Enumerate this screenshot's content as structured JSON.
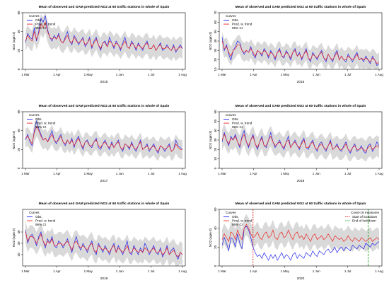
{
  "figure": {
    "panel_title": "Mean of observed and GAM predicted NO2 at 60 traffic stations in whole of Spain",
    "ylabel": "NO2 (ugm-3)",
    "month_ticks": [
      "1 Mar",
      "1 Apr",
      "1 May",
      "1 Jun",
      "1 Jul",
      "1 Aug"
    ],
    "legend": {
      "title": "Curves",
      "obs": "Obs.",
      "pred": "Pred. w. trend",
      "ci": "95% CI"
    },
    "covid_legend": {
      "title": "Covid-19 measures",
      "start": "Start of lockdown",
      "end": "End of lockdown"
    },
    "colors": {
      "obs": "#2222ee",
      "pred": "#ee2222",
      "ci": "#d9d9d9",
      "start_line": "#dd0000",
      "end_line": "#119911"
    }
  },
  "chart_data": [
    {
      "type": "line",
      "year": "2015",
      "ylim": [
        0,
        60
      ],
      "yticks": [
        0,
        20,
        40,
        60
      ],
      "obs": [
        28,
        38,
        34,
        32,
        44,
        30,
        40,
        54,
        50,
        57,
        42,
        34,
        30,
        36,
        32,
        38,
        30,
        28,
        34,
        40,
        30,
        26,
        36,
        32,
        26,
        30,
        34,
        24,
        28,
        34,
        22,
        30,
        34,
        26,
        20,
        28,
        30,
        24,
        34,
        28,
        22,
        30,
        26,
        20,
        28,
        34,
        24,
        22,
        30,
        26,
        20,
        28,
        24,
        20,
        26,
        30,
        22,
        22,
        26,
        20,
        24,
        28,
        20,
        22,
        26,
        22,
        20,
        26,
        18,
        22,
        26,
        22
      ],
      "pred": [
        30,
        36,
        32,
        30,
        40,
        32,
        38,
        48,
        44,
        50,
        40,
        34,
        32,
        34,
        32,
        36,
        30,
        28,
        32,
        36,
        30,
        28,
        34,
        30,
        28,
        30,
        32,
        26,
        28,
        32,
        24,
        28,
        32,
        26,
        22,
        28,
        28,
        24,
        30,
        28,
        24,
        28,
        26,
        22,
        26,
        30,
        24,
        22,
        28,
        26,
        22,
        26,
        24,
        22,
        26,
        28,
        22,
        22,
        26,
        20,
        24,
        26,
        22,
        22,
        24,
        22,
        20,
        24,
        20,
        22,
        24,
        22
      ],
      "ci_half": 11
    },
    {
      "type": "line",
      "year": "2016",
      "ylim": [
        10,
        70
      ],
      "yticks": [
        10,
        20,
        30,
        40,
        50,
        60,
        70
      ],
      "obs": [
        44,
        30,
        36,
        26,
        20,
        30,
        34,
        40,
        38,
        30,
        26,
        30,
        28,
        34,
        26,
        22,
        30,
        28,
        24,
        32,
        28,
        22,
        30,
        26,
        20,
        28,
        32,
        24,
        22,
        30,
        26,
        20,
        28,
        32,
        24,
        28,
        20,
        26,
        32,
        22,
        18,
        28,
        24,
        20,
        26,
        30,
        22,
        18,
        26,
        22,
        18,
        26,
        30,
        20,
        24,
        20,
        18,
        26,
        22,
        18,
        24,
        28,
        20,
        22,
        18,
        24,
        20,
        16,
        24,
        20,
        14,
        16
      ],
      "pred": [
        40,
        32,
        34,
        28,
        24,
        30,
        32,
        36,
        36,
        30,
        28,
        30,
        28,
        32,
        28,
        24,
        30,
        28,
        26,
        30,
        28,
        24,
        28,
        26,
        22,
        28,
        30,
        24,
        24,
        28,
        26,
        22,
        28,
        30,
        24,
        26,
        22,
        26,
        30,
        22,
        20,
        26,
        24,
        22,
        26,
        28,
        22,
        20,
        26,
        22,
        20,
        24,
        28,
        20,
        24,
        20,
        20,
        24,
        22,
        20,
        22,
        26,
        20,
        22,
        20,
        22,
        20,
        18,
        22,
        20,
        16,
        18
      ],
      "ci_half": 10
    },
    {
      "type": "line",
      "year": "2017",
      "ylim": [
        0,
        60
      ],
      "yticks": [
        0,
        20,
        40,
        60
      ],
      "obs": [
        30,
        36,
        28,
        24,
        40,
        50,
        42,
        36,
        30,
        32,
        28,
        34,
        40,
        30,
        26,
        32,
        36,
        28,
        24,
        30,
        26,
        32,
        22,
        30,
        34,
        26,
        20,
        28,
        30,
        24,
        22,
        28,
        32,
        22,
        20,
        26,
        30,
        24,
        20,
        28,
        22,
        26,
        30,
        22,
        18,
        26,
        24,
        20,
        28,
        22,
        18,
        24,
        30,
        20,
        22,
        26,
        18,
        22,
        26,
        20,
        16,
        24,
        22,
        18,
        22,
        26,
        18,
        20,
        30,
        24,
        22,
        20
      ],
      "pred": [
        32,
        34,
        30,
        26,
        38,
        44,
        40,
        34,
        30,
        32,
        28,
        32,
        36,
        30,
        28,
        30,
        34,
        28,
        26,
        30,
        26,
        30,
        24,
        28,
        32,
        26,
        22,
        28,
        28,
        24,
        24,
        28,
        30,
        24,
        22,
        26,
        28,
        24,
        22,
        26,
        22,
        26,
        28,
        22,
        20,
        26,
        24,
        22,
        26,
        22,
        20,
        24,
        28,
        20,
        22,
        24,
        20,
        22,
        24,
        20,
        18,
        24,
        22,
        20,
        22,
        24,
        18,
        20,
        26,
        22,
        20,
        20
      ],
      "ci_half": 10
    },
    {
      "type": "line",
      "year": "2018",
      "ylim": [
        0,
        60
      ],
      "yticks": [
        0,
        10,
        20,
        30,
        40,
        50,
        60
      ],
      "obs": [
        28,
        38,
        30,
        24,
        34,
        30,
        36,
        28,
        22,
        34,
        40,
        28,
        22,
        30,
        36,
        26,
        20,
        28,
        34,
        24,
        22,
        30,
        38,
        28,
        22,
        26,
        30,
        24,
        20,
        28,
        34,
        22,
        26,
        30,
        24,
        20,
        28,
        32,
        22,
        20,
        26,
        30,
        22,
        18,
        26,
        28,
        22,
        18,
        24,
        30,
        20,
        22,
        26,
        20,
        18,
        24,
        28,
        20,
        16,
        22,
        26,
        18,
        20,
        24,
        18,
        16,
        24,
        26,
        18,
        22,
        28,
        24
      ],
      "pred": [
        30,
        36,
        30,
        26,
        32,
        30,
        34,
        28,
        24,
        32,
        36,
        28,
        24,
        30,
        34,
        26,
        22,
        28,
        32,
        24,
        24,
        30,
        34,
        28,
        24,
        26,
        28,
        24,
        22,
        28,
        30,
        22,
        26,
        28,
        24,
        22,
        26,
        30,
        22,
        22,
        26,
        28,
        22,
        20,
        24,
        26,
        22,
        20,
        24,
        28,
        20,
        22,
        24,
        20,
        20,
        22,
        26,
        20,
        18,
        22,
        24,
        20,
        20,
        22,
        20,
        18,
        22,
        24,
        20,
        22,
        24,
        22
      ],
      "ci_half": 11
    },
    {
      "type": "line",
      "year": "2019",
      "ylim": [
        10,
        60
      ],
      "yticks": [
        20,
        30,
        40
      ],
      "obs": [
        42,
        30,
        36,
        38,
        34,
        28,
        36,
        40,
        32,
        26,
        34,
        30,
        36,
        28,
        26,
        32,
        30,
        26,
        30,
        34,
        28,
        22,
        30,
        36,
        28,
        24,
        30,
        26,
        22,
        28,
        32,
        24,
        20,
        30,
        26,
        22,
        28,
        24,
        20,
        26,
        30,
        22,
        28,
        24,
        20,
        26,
        32,
        22,
        20,
        28,
        24,
        20,
        26,
        22,
        30,
        26,
        20,
        24,
        28,
        22,
        20,
        26,
        18,
        22,
        28,
        20,
        24,
        26,
        20,
        16,
        22,
        20
      ],
      "pred": [
        40,
        32,
        36,
        36,
        34,
        30,
        34,
        38,
        32,
        28,
        32,
        30,
        34,
        28,
        28,
        30,
        30,
        28,
        30,
        32,
        28,
        24,
        30,
        32,
        28,
        26,
        28,
        26,
        24,
        28,
        30,
        24,
        22,
        28,
        26,
        24,
        26,
        24,
        22,
        26,
        28,
        22,
        26,
        24,
        22,
        24,
        28,
        22,
        22,
        26,
        24,
        22,
        24,
        22,
        26,
        24,
        22,
        24,
        26,
        22,
        22,
        24,
        20,
        22,
        26,
        20,
        22,
        24,
        20,
        18,
        22,
        20
      ],
      "ci_half": 10
    },
    {
      "type": "line",
      "year": "2020",
      "ylim": [
        0,
        60
      ],
      "yticks": [
        0,
        20,
        40,
        60
      ],
      "lockdown_start_index": 14,
      "lockdown_end_index": 66,
      "obs": [
        22,
        30,
        24,
        16,
        30,
        28,
        20,
        34,
        24,
        18,
        40,
        42,
        38,
        30,
        20,
        14,
        10,
        12,
        8,
        14,
        10,
        6,
        12,
        8,
        12,
        6,
        10,
        14,
        8,
        12,
        10,
        6,
        12,
        14,
        8,
        12,
        10,
        8,
        14,
        12,
        10,
        16,
        12,
        10,
        16,
        14,
        12,
        16,
        18,
        14,
        16,
        20,
        14,
        18,
        20,
        16,
        20,
        18,
        16,
        22,
        20,
        18,
        22,
        20,
        18,
        24,
        22,
        20,
        24,
        22,
        24,
        26
      ],
      "pred": [
        28,
        34,
        30,
        26,
        36,
        34,
        28,
        38,
        32,
        28,
        40,
        44,
        40,
        34,
        30,
        32,
        36,
        30,
        28,
        34,
        36,
        30,
        32,
        38,
        30,
        28,
        34,
        36,
        30,
        32,
        38,
        32,
        28,
        34,
        36,
        30,
        32,
        28,
        34,
        30,
        26,
        32,
        34,
        28,
        30,
        32,
        28,
        30,
        34,
        30,
        26,
        32,
        30,
        28,
        30,
        26,
        28,
        32,
        28,
        26,
        30,
        28,
        26,
        30,
        28,
        26,
        28,
        30,
        26,
        28,
        30,
        28
      ],
      "ci_half": 11
    }
  ]
}
